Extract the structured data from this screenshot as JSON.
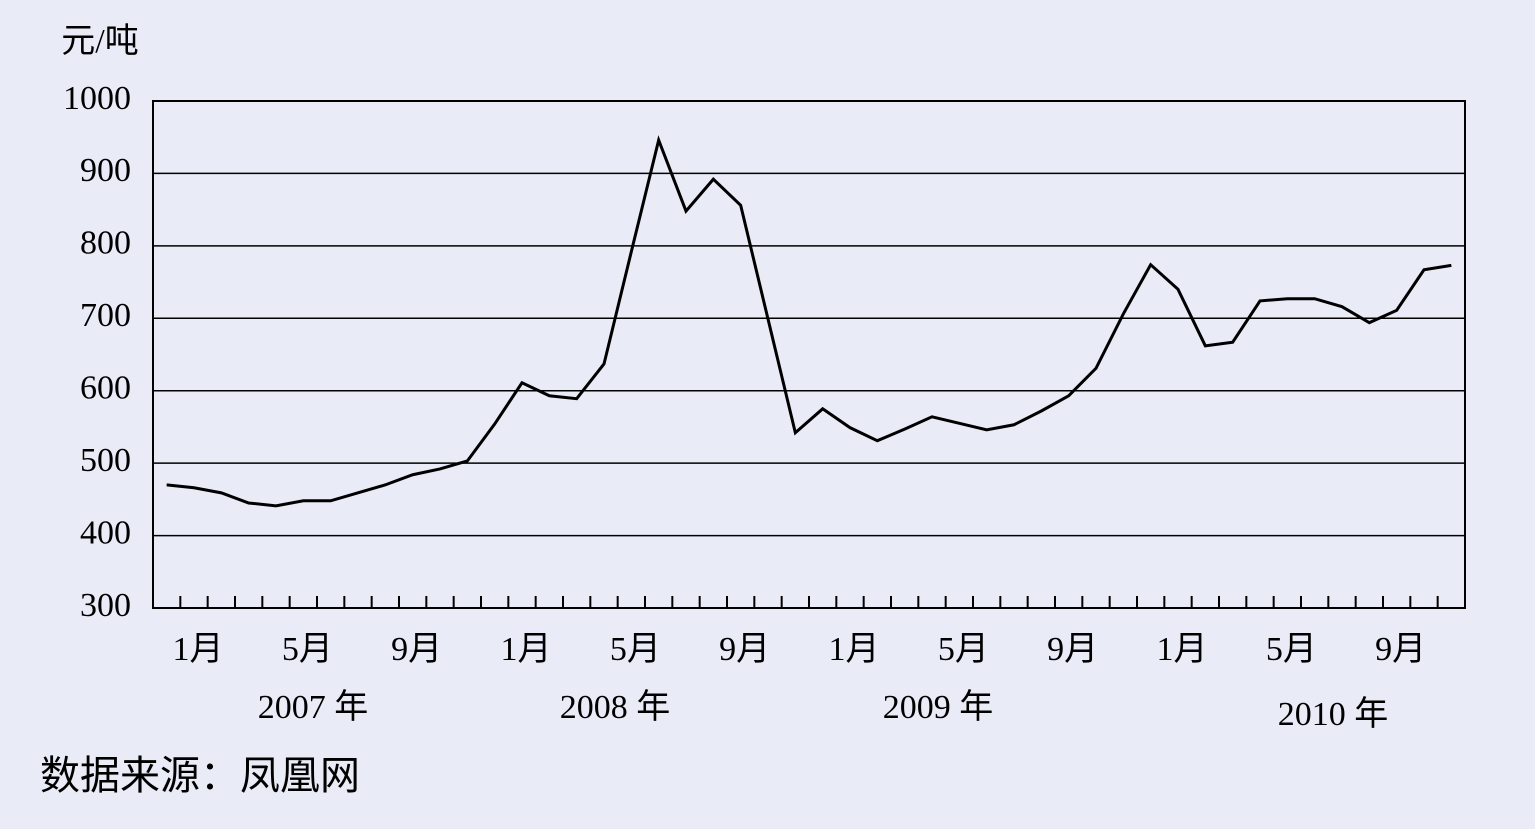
{
  "chart_data": {
    "type": "line",
    "y_axis_label": "元/吨",
    "categories": [
      null,
      "1月",
      null,
      null,
      null,
      "5月",
      null,
      null,
      null,
      "9月",
      null,
      null,
      null,
      "1月",
      null,
      null,
      null,
      "5月",
      null,
      null,
      null,
      "9月",
      null,
      null,
      null,
      "1月",
      null,
      null,
      null,
      "5月",
      null,
      null,
      null,
      "9月",
      null,
      null,
      null,
      "1月",
      null,
      null,
      null,
      "5月",
      null,
      null,
      null,
      "9月",
      null,
      null
    ],
    "year_labels": [
      "2007 年",
      "2008 年",
      "2009 年",
      "2010 年"
    ],
    "series": [
      {
        "color": "#000000",
        "values": [
          470,
          466,
          459,
          445,
          441,
          448,
          448,
          459,
          470,
          484,
          492,
          503,
          554,
          611,
          593,
          589,
          637,
          792,
          946,
          848,
          892,
          856,
          699,
          542,
          575,
          549,
          531,
          547,
          564,
          555,
          546,
          553,
          572,
          593,
          631,
          706,
          774,
          740,
          662,
          667,
          724,
          727,
          727,
          716,
          694,
          711,
          767,
          773
        ]
      }
    ],
    "ylim": [
      300,
      1000
    ],
    "yticks": [
      300,
      400,
      500,
      600,
      700,
      800,
      900,
      1000
    ],
    "grid": true,
    "source": "数据来源：凤凰网"
  }
}
